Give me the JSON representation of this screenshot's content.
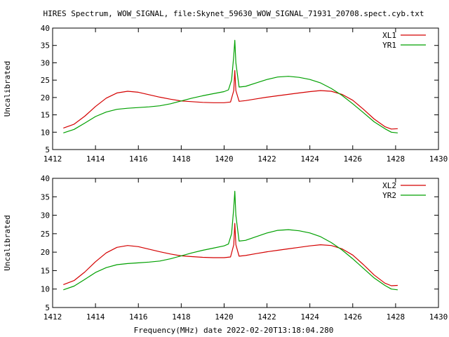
{
  "title": "HIRES Spectrum, WOW_SIGNAL, file:Skynet_59630_WOW_SIGNAL_71931_20708.spect.cyb.txt",
  "xlabel": "Frequency(MHz) date 2022-02-20T13:18:04.280",
  "colors": {
    "red": "#d40000",
    "green": "#00a000",
    "axis": "#000000"
  },
  "chart_data": [
    {
      "type": "line",
      "ylabel": "Uncalibrated",
      "xlim": [
        1412,
        1430
      ],
      "ylim": [
        5,
        40
      ],
      "xticks": [
        "1412",
        "1414",
        "1416",
        "1418",
        "1420",
        "1422",
        "1424",
        "1426",
        "1428",
        "1430"
      ],
      "yticks": [
        "5",
        "10",
        "15",
        "20",
        "25",
        "30",
        "35",
        "40"
      ],
      "legend_position": "top-right",
      "series": [
        {
          "name": "XL1",
          "color": "#d40000",
          "points": [
            [
              1412.5,
              11.2
            ],
            [
              1413.0,
              12.3
            ],
            [
              1413.5,
              14.6
            ],
            [
              1414.0,
              17.4
            ],
            [
              1414.5,
              19.8
            ],
            [
              1415.0,
              21.3
            ],
            [
              1415.5,
              21.8
            ],
            [
              1416.0,
              21.5
            ],
            [
              1416.5,
              20.8
            ],
            [
              1417.0,
              20.1
            ],
            [
              1417.5,
              19.5
            ],
            [
              1418.0,
              19.0
            ],
            [
              1418.5,
              18.8
            ],
            [
              1419.0,
              18.6
            ],
            [
              1419.5,
              18.5
            ],
            [
              1420.0,
              18.5
            ],
            [
              1420.3,
              18.7
            ],
            [
              1420.45,
              22.0
            ],
            [
              1420.5,
              27.8
            ],
            [
              1420.55,
              22.0
            ],
            [
              1420.7,
              18.9
            ],
            [
              1421.0,
              19.1
            ],
            [
              1421.5,
              19.6
            ],
            [
              1422.0,
              20.1
            ],
            [
              1422.5,
              20.5
            ],
            [
              1423.0,
              20.9
            ],
            [
              1423.5,
              21.3
            ],
            [
              1424.0,
              21.7
            ],
            [
              1424.5,
              22.0
            ],
            [
              1425.0,
              21.8
            ],
            [
              1425.5,
              20.9
            ],
            [
              1426.0,
              19.2
            ],
            [
              1426.5,
              16.6
            ],
            [
              1427.0,
              13.8
            ],
            [
              1427.5,
              11.6
            ],
            [
              1427.8,
              10.9
            ],
            [
              1428.1,
              11.0
            ]
          ]
        },
        {
          "name": "YR1",
          "color": "#00a000",
          "points": [
            [
              1412.5,
              9.8
            ],
            [
              1413.0,
              10.8
            ],
            [
              1413.5,
              12.6
            ],
            [
              1414.0,
              14.5
            ],
            [
              1414.5,
              15.8
            ],
            [
              1415.0,
              16.6
            ],
            [
              1415.5,
              16.9
            ],
            [
              1416.0,
              17.1
            ],
            [
              1416.5,
              17.3
            ],
            [
              1417.0,
              17.6
            ],
            [
              1417.5,
              18.2
            ],
            [
              1418.0,
              19.0
            ],
            [
              1418.5,
              19.8
            ],
            [
              1419.0,
              20.5
            ],
            [
              1419.5,
              21.1
            ],
            [
              1420.0,
              21.7
            ],
            [
              1420.2,
              22.2
            ],
            [
              1420.35,
              25.0
            ],
            [
              1420.45,
              32.0
            ],
            [
              1420.5,
              36.5
            ],
            [
              1420.55,
              30.0
            ],
            [
              1420.7,
              23.0
            ],
            [
              1421.0,
              23.2
            ],
            [
              1421.5,
              24.2
            ],
            [
              1422.0,
              25.2
            ],
            [
              1422.5,
              25.9
            ],
            [
              1423.0,
              26.1
            ],
            [
              1423.5,
              25.8
            ],
            [
              1424.0,
              25.2
            ],
            [
              1424.5,
              24.2
            ],
            [
              1425.0,
              22.6
            ],
            [
              1425.5,
              20.6
            ],
            [
              1426.0,
              18.2
            ],
            [
              1426.5,
              15.6
            ],
            [
              1427.0,
              13.0
            ],
            [
              1427.5,
              11.0
            ],
            [
              1427.8,
              10.0
            ],
            [
              1428.1,
              9.8
            ]
          ]
        }
      ]
    },
    {
      "type": "line",
      "ylabel": "Uncalibrated",
      "xlim": [
        1412,
        1430
      ],
      "ylim": [
        5,
        40
      ],
      "xticks": [
        "1412",
        "1414",
        "1416",
        "1418",
        "1420",
        "1422",
        "1424",
        "1426",
        "1428",
        "1430"
      ],
      "yticks": [
        "5",
        "10",
        "15",
        "20",
        "25",
        "30",
        "35",
        "40"
      ],
      "legend_position": "top-right",
      "series": [
        {
          "name": "XL2",
          "color": "#d40000",
          "points": [
            [
              1412.5,
              11.2
            ],
            [
              1413.0,
              12.3
            ],
            [
              1413.5,
              14.6
            ],
            [
              1414.0,
              17.4
            ],
            [
              1414.5,
              19.8
            ],
            [
              1415.0,
              21.3
            ],
            [
              1415.5,
              21.8
            ],
            [
              1416.0,
              21.5
            ],
            [
              1416.5,
              20.8
            ],
            [
              1417.0,
              20.1
            ],
            [
              1417.5,
              19.5
            ],
            [
              1418.0,
              19.0
            ],
            [
              1418.5,
              18.8
            ],
            [
              1419.0,
              18.6
            ],
            [
              1419.5,
              18.5
            ],
            [
              1420.0,
              18.5
            ],
            [
              1420.3,
              18.7
            ],
            [
              1420.45,
              22.0
            ],
            [
              1420.5,
              27.8
            ],
            [
              1420.55,
              22.0
            ],
            [
              1420.7,
              18.9
            ],
            [
              1421.0,
              19.1
            ],
            [
              1421.5,
              19.6
            ],
            [
              1422.0,
              20.1
            ],
            [
              1422.5,
              20.5
            ],
            [
              1423.0,
              20.9
            ],
            [
              1423.5,
              21.3
            ],
            [
              1424.0,
              21.7
            ],
            [
              1424.5,
              22.0
            ],
            [
              1425.0,
              21.8
            ],
            [
              1425.5,
              20.9
            ],
            [
              1426.0,
              19.2
            ],
            [
              1426.5,
              16.6
            ],
            [
              1427.0,
              13.8
            ],
            [
              1427.5,
              11.6
            ],
            [
              1427.8,
              10.9
            ],
            [
              1428.1,
              11.0
            ]
          ]
        },
        {
          "name": "YR2",
          "color": "#00a000",
          "points": [
            [
              1412.5,
              9.8
            ],
            [
              1413.0,
              10.8
            ],
            [
              1413.5,
              12.6
            ],
            [
              1414.0,
              14.5
            ],
            [
              1414.5,
              15.8
            ],
            [
              1415.0,
              16.6
            ],
            [
              1415.5,
              16.9
            ],
            [
              1416.0,
              17.1
            ],
            [
              1416.5,
              17.3
            ],
            [
              1417.0,
              17.6
            ],
            [
              1417.5,
              18.2
            ],
            [
              1418.0,
              19.0
            ],
            [
              1418.5,
              19.8
            ],
            [
              1419.0,
              20.5
            ],
            [
              1419.5,
              21.1
            ],
            [
              1420.0,
              21.7
            ],
            [
              1420.2,
              22.2
            ],
            [
              1420.35,
              25.0
            ],
            [
              1420.45,
              32.0
            ],
            [
              1420.5,
              36.5
            ],
            [
              1420.55,
              30.0
            ],
            [
              1420.7,
              23.0
            ],
            [
              1421.0,
              23.2
            ],
            [
              1421.5,
              24.2
            ],
            [
              1422.0,
              25.2
            ],
            [
              1422.5,
              25.9
            ],
            [
              1423.0,
              26.1
            ],
            [
              1423.5,
              25.8
            ],
            [
              1424.0,
              25.2
            ],
            [
              1424.5,
              24.2
            ],
            [
              1425.0,
              22.6
            ],
            [
              1425.5,
              20.6
            ],
            [
              1426.0,
              18.2
            ],
            [
              1426.5,
              15.6
            ],
            [
              1427.0,
              13.0
            ],
            [
              1427.5,
              11.0
            ],
            [
              1427.8,
              10.0
            ],
            [
              1428.1,
              9.8
            ]
          ]
        }
      ]
    }
  ]
}
